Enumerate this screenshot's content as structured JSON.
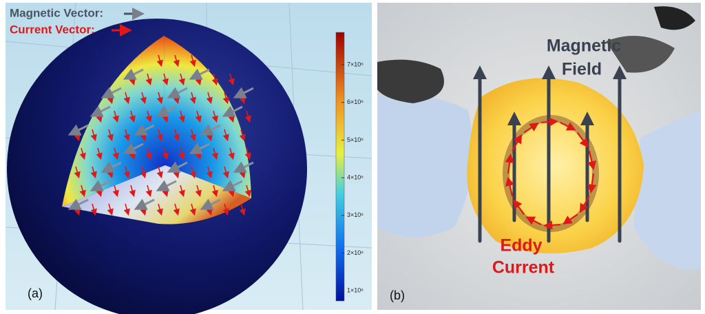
{
  "panel_a": {
    "label": "(a)",
    "legend": {
      "magnetic": "Magnetic Vector:",
      "current": "Current Vector:"
    },
    "colorbar": {
      "lim": [
        730000,
        7860000
      ],
      "ticks": [
        {
          "value": 1000000,
          "label": "1×10⁶"
        },
        {
          "value": 2000000,
          "label": "2×10⁶"
        },
        {
          "value": 3000000,
          "label": "3×10⁶"
        },
        {
          "value": 4000000,
          "label": "4×10⁶"
        },
        {
          "value": 5000000,
          "label": "5×10⁶"
        },
        {
          "value": 6000000,
          "label": "6×10⁶"
        },
        {
          "value": 7000000,
          "label": "7×10⁶"
        }
      ]
    }
  },
  "panel_b": {
    "label": "(b)",
    "magnetic_field": [
      "Magnetic",
      "Field"
    ],
    "eddy_current": [
      "Eddy",
      "Current"
    ]
  }
}
